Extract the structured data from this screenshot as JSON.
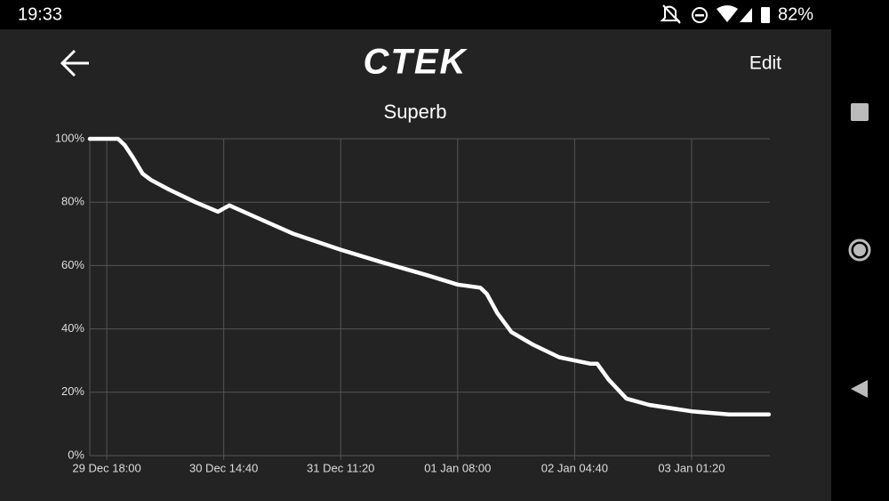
{
  "status_bar": {
    "time": "19:33",
    "battery": "82%"
  },
  "header": {
    "logo": "CTEK",
    "action": "Edit"
  },
  "chart_data": {
    "type": "line",
    "title": "Superb",
    "color": "#ffffff",
    "grid": true,
    "x": [
      "29 Dec 15:00",
      "29 Dec 20:00",
      "29 Dec 21:10",
      "29 Dec 22:40",
      "30 Dec 00:20",
      "30 Dec 01:50",
      "30 Dec 05:00",
      "30 Dec 09:40",
      "30 Dec 13:40",
      "30 Dec 15:40",
      "30 Dec 20:40",
      "31 Dec 03:00",
      "31 Dec 11:20",
      "31 Dec 18:40",
      "01 Jan 02:30",
      "01 Jan 08:00",
      "01 Jan 12:00",
      "01 Jan 13:10",
      "01 Jan 15:00",
      "01 Jan 17:30",
      "01 Jan 21:20",
      "02 Jan 02:00",
      "02 Jan 07:30",
      "02 Jan 08:40",
      "02 Jan 10:40",
      "02 Jan 13:50",
      "02 Jan 17:50",
      "03 Jan 01:20",
      "03 Jan 08:00",
      "03 Jan 15:00"
    ],
    "values": [
      100,
      100,
      98,
      94,
      89,
      87,
      84,
      80,
      77,
      79,
      75,
      70,
      65,
      61,
      57,
      54,
      53,
      51,
      45,
      39,
      35,
      31,
      29,
      29,
      24,
      18,
      16,
      14,
      13,
      13
    ],
    "xlim": [
      "29 Dec 15:00",
      "03 Jan 15:10"
    ],
    "xticks": [
      "29 Dec 18:00",
      "30 Dec 14:40",
      "31 Dec 11:20",
      "01 Jan 08:00",
      "02 Jan 04:40",
      "03 Jan 01:20"
    ],
    "ylim": [
      0,
      100
    ],
    "yticks": [
      {
        "value": 0,
        "label": "0%"
      },
      {
        "value": 20,
        "label": "20%"
      },
      {
        "value": 40,
        "label": "40%"
      },
      {
        "value": 60,
        "label": "60%"
      },
      {
        "value": 80,
        "label": "80%"
      },
      {
        "value": 100,
        "label": "100%"
      }
    ]
  }
}
